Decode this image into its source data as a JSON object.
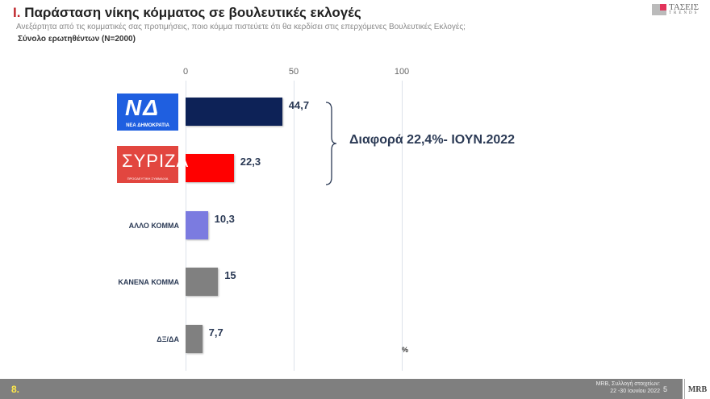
{
  "header": {
    "number": "I.",
    "title": "Παράσταση νίκης κόμματος σε βουλευτικές εκλογές",
    "question": "Ανεξάρτητα από τις κομματικές σας προτιμήσεις, ποιο κόμμα πιστεύετε ότι θα κερδίσει στις επερχόμενες Βουλευτικές Εκλογές;",
    "base": "Σύνολο ερωτηθέντων (N=2000)",
    "brand": "ΤΑΣΕΙΣ",
    "brand_sub": "TRENDS"
  },
  "chart_data": {
    "type": "bar",
    "orientation": "horizontal",
    "categories": [
      "ΝΕΑ ΔΗΜΟΚΡΑΤΙΑ",
      "ΣΥΡΙΖΑ",
      "ΑΛΛΟ ΚΟΜΜΑ",
      "ΚΑΝΕΝΑ ΚΟΜΜΑ",
      "ΔΞ/ΔΑ"
    ],
    "values": [
      44.7,
      22.3,
      10.3,
      15,
      7.7
    ],
    "labels": [
      "44,7",
      "22,3",
      "10,3",
      "15",
      "7,7"
    ],
    "colors": [
      "#0d2257",
      "#ff0000",
      "#7b7be0",
      "#808080",
      "#808080"
    ],
    "xlim": [
      0,
      100
    ],
    "ticks": [
      "0",
      "50",
      "100"
    ],
    "unit": "%",
    "grid": true,
    "annotation": "Διαφορά 22,4%- ΙΟΥΝ.2022"
  },
  "logos": {
    "nd": {
      "mark": "ΝΔ",
      "text": "ΝΕΑ ΔΗΜΟΚΡΑΤΙΑ",
      "color": "#1f5fe0"
    },
    "syriza": {
      "mark": "ΣΥΡΙΖΑ",
      "text": "ΠΡΟΟΔΕΥΤΙΚΗ ΣΥΜΜΑΧΙΑ",
      "color": "#e2463f"
    }
  },
  "footer": {
    "section": "8.",
    "source_line1": "MRB, Συλλογή στοιχείων:",
    "source_line2": "22 -30 Ιουνίου 2022",
    "page": "5",
    "logo": "MRB"
  }
}
